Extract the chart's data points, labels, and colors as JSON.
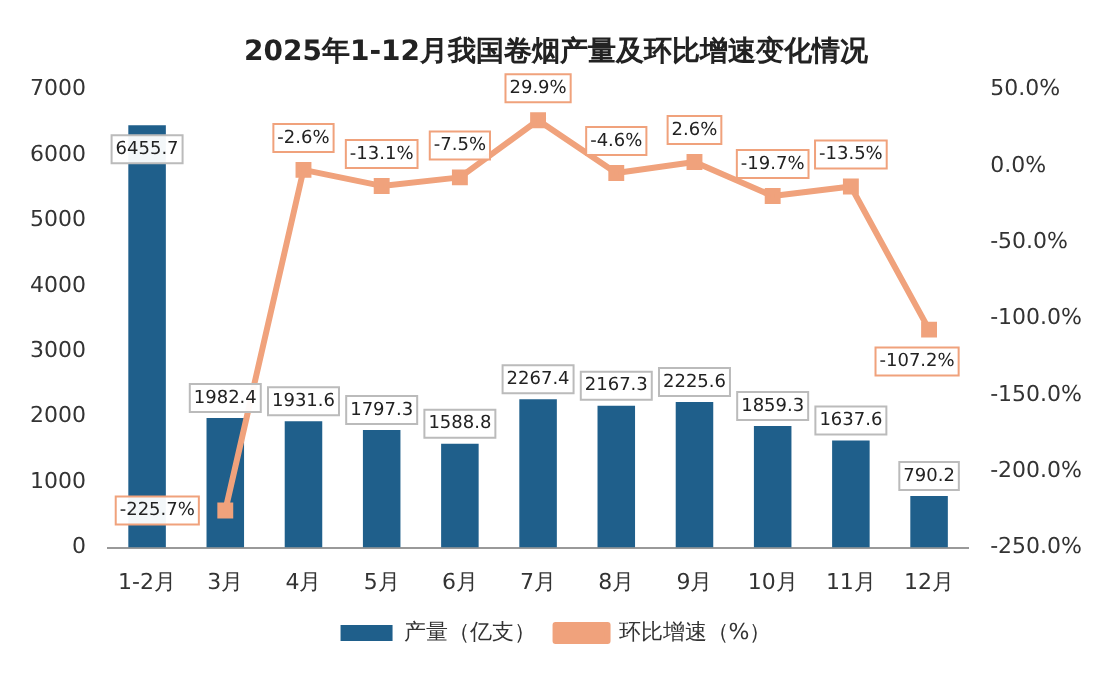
{
  "chart_data": {
    "type": "bar",
    "title": "2025年1-12月我国卷烟产量及环比增速变化情况",
    "categories": [
      "1-2月",
      "3月",
      "4月",
      "5月",
      "6月",
      "7月",
      "8月",
      "9月",
      "10月",
      "11月",
      "12月"
    ],
    "series": [
      {
        "name": "产量（亿支）",
        "color": "#1f5f8b",
        "values": [
          6455.7,
          1982.4,
          1931.6,
          1797.3,
          1588.8,
          2267.4,
          2167.3,
          2225.6,
          1859.3,
          1637.6,
          790.2
        ],
        "value_labels": [
          "6455.7",
          "1982.4",
          "1931.6",
          "1797.3",
          "1588.8",
          "2267.4",
          "2167.3",
          "2225.6",
          "1859.3",
          "1637.6",
          "790.2"
        ]
      },
      {
        "name": "环比增速（%）",
        "type": "line",
        "axis": "y2",
        "color": "#f0a27c",
        "marker": "square",
        "values": [
          null,
          -225.7,
          -2.6,
          -13.1,
          -7.5,
          29.9,
          -4.6,
          2.6,
          -19.7,
          -13.5,
          -107.2
        ],
        "value_labels": [
          null,
          "-225.7%",
          "-2.6%",
          "-13.1%",
          "-7.5%",
          "29.9%",
          "-4.6%",
          "2.6%",
          "-19.7%",
          "-13.5%",
          "-107.2%"
        ]
      }
    ],
    "ylim": [
      0,
      7000
    ],
    "yticks": [
      0,
      1000,
      2000,
      3000,
      4000,
      5000,
      6000,
      7000
    ],
    "y2lim": [
      -250,
      50
    ],
    "y2ticks": [
      {
        "value": -250,
        "label": "-250.0%"
      },
      {
        "value": -200,
        "label": "-200.0%"
      },
      {
        "value": -150,
        "label": "-150.0%"
      },
      {
        "value": -100,
        "label": "-100.0%"
      },
      {
        "value": -50,
        "label": "-50.0%"
      },
      {
        "value": 0,
        "label": "0.0%"
      },
      {
        "value": 50,
        "label": "50.0%"
      }
    ],
    "legend": "bottom",
    "grid": false
  }
}
